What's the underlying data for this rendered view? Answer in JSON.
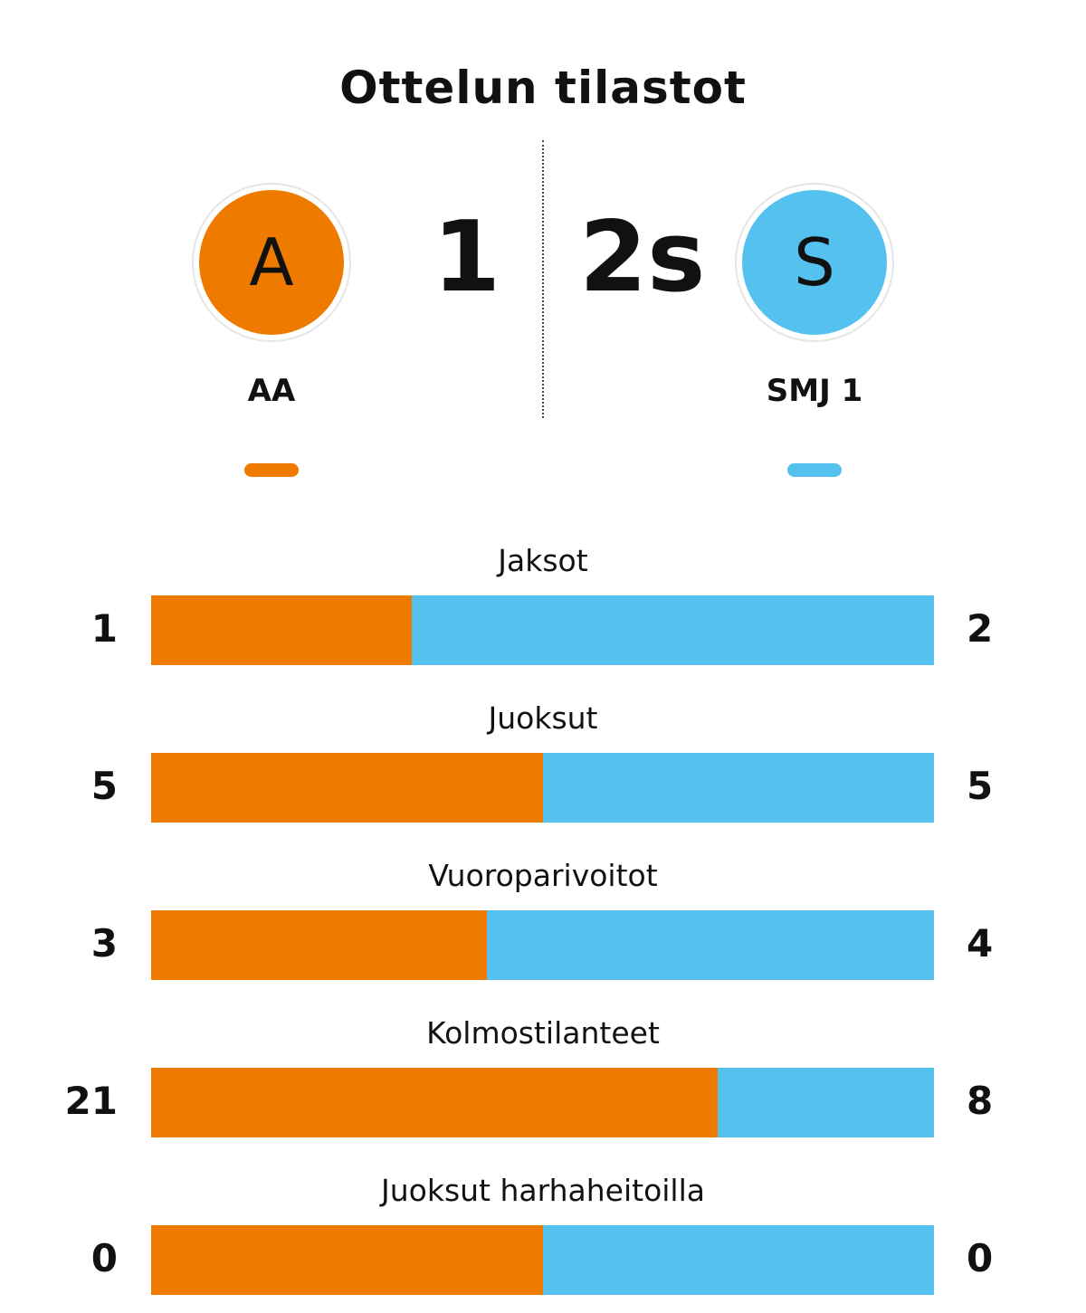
{
  "title": "Ottelun tilastot",
  "colors": {
    "home": "#ee7b00",
    "away": "#55c1ee"
  },
  "home": {
    "logo_letter": "A",
    "name": "AA",
    "score": "1"
  },
  "away": {
    "logo_letter": "S",
    "name": "SMJ 1",
    "score": "2s"
  },
  "chart_data": {
    "type": "bar",
    "orientation": "horizontal-stacked",
    "categories": [
      "Jaksot",
      "Juoksut",
      "Vuoroparivoitot",
      "Kolmostilanteet",
      "Juoksut harhaheitoilla"
    ],
    "series": [
      {
        "name": "AA",
        "values": [
          1,
          5,
          3,
          21,
          0
        ]
      },
      {
        "name": "SMJ 1",
        "values": [
          2,
          5,
          4,
          8,
          0
        ]
      }
    ]
  }
}
